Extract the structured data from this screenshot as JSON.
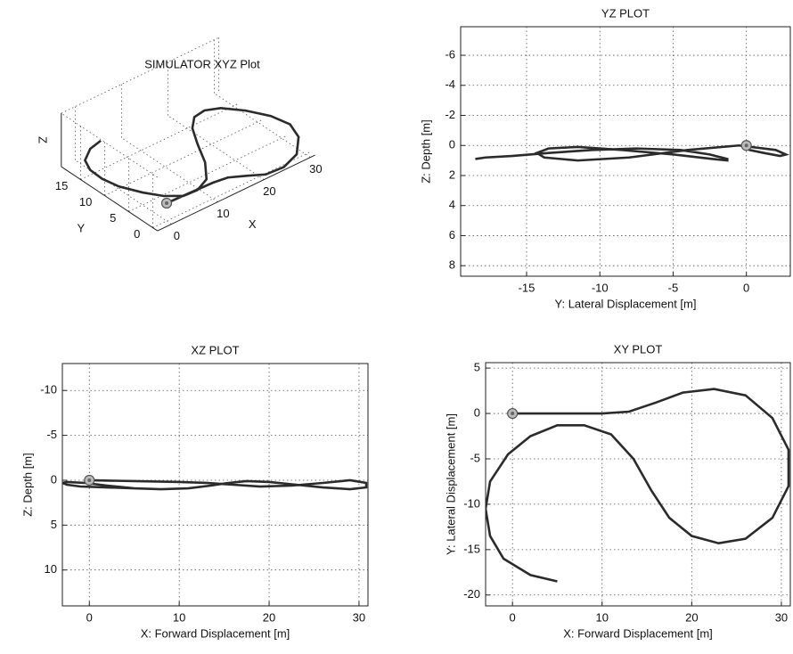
{
  "chart_data": [
    {
      "type": "line3d",
      "title": "SIMULATOR XYZ Plot",
      "xlabel": "X",
      "ylabel": "Y",
      "zlabel": "Z",
      "xlim": [
        -3,
        31
      ],
      "ylim": [
        -1,
        19
      ],
      "zlim": [
        -4,
        2
      ],
      "xticks": [
        0,
        10,
        20,
        30
      ],
      "yticks": [
        0,
        5,
        10,
        15
      ],
      "grid": true,
      "start_marker": true,
      "series": [
        {
          "color": "#2b2b2b",
          "x": [
            0,
            5,
            10,
            13,
            16,
            19,
            22.5,
            26,
            29,
            30.8,
            30.8,
            29,
            26,
            23,
            20,
            17.5,
            15.5,
            13.5,
            11,
            8,
            5,
            2,
            -0.5,
            -2.5,
            -3,
            -2.5,
            -1,
            2,
            5
          ],
          "y": [
            0,
            0,
            0,
            -0.2,
            -1.2,
            -2.3,
            -2.7,
            -2,
            0.5,
            4,
            8,
            11.5,
            13.8,
            14.3,
            13.5,
            11.5,
            8.5,
            5,
            2.3,
            1.3,
            1.3,
            2.5,
            4.5,
            7.5,
            10.5,
            13.5,
            16,
            17.8,
            18.5
          ],
          "z": [
            0,
            0.1,
            0.2,
            0.3,
            0.5,
            0.7,
            0.6,
            0.3,
            0,
            0.3,
            0.8,
            1,
            0.8,
            0.5,
            0.2,
            0.1,
            0.3,
            0.6,
            0.9,
            1,
            0.9,
            0.6,
            0.3,
            0.2,
            0.3,
            0.5,
            0.7,
            0.8,
            0.9
          ]
        }
      ]
    },
    {
      "type": "line",
      "title": "YZ PLOT",
      "xlabel": "Y: Lateral Displacement [m]",
      "ylabel": "Z: Depth [m]",
      "xlim": [
        -19.5,
        3
      ],
      "ylim": [
        -7.9,
        8.7
      ],
      "y_reversed": true,
      "xticks": [
        -15,
        -10,
        -5,
        0
      ],
      "yticks": [
        -6,
        -4,
        -2,
        0,
        2,
        4,
        6,
        8
      ],
      "grid": true,
      "start_marker": true,
      "series": [
        {
          "color": "#2b2b2b",
          "x": [
            0,
            0,
            0,
            0.2,
            1.2,
            2.3,
            2.7,
            2,
            -0.5,
            -4,
            -8,
            -11.5,
            -13.8,
            -14.3,
            -13.5,
            -11.5,
            -8.5,
            -5,
            -2.3,
            -1.3,
            -1.3,
            -2.5,
            -4.5,
            -7.5,
            -10.5,
            -13.5,
            -16,
            -17.8,
            -18.5
          ],
          "values": [
            0,
            0.1,
            0.2,
            0.3,
            0.5,
            0.7,
            0.6,
            0.3,
            0,
            0.3,
            0.8,
            1,
            0.8,
            0.5,
            0.2,
            0.1,
            0.3,
            0.6,
            0.9,
            1,
            0.9,
            0.6,
            0.3,
            0.2,
            0.3,
            0.5,
            0.7,
            0.8,
            0.9
          ]
        }
      ]
    },
    {
      "type": "line",
      "title": "XZ PLOT",
      "xlabel": "X: Forward Displacement [m]",
      "ylabel": "Z: Depth [m]",
      "xlim": [
        -3,
        31
      ],
      "ylim": [
        -13,
        14
      ],
      "y_reversed": true,
      "xticks": [
        0,
        10,
        20,
        30
      ],
      "yticks": [
        -10,
        -5,
        0,
        5,
        10
      ],
      "grid": true,
      "start_marker": true,
      "series": [
        {
          "color": "#2b2b2b",
          "x": [
            0,
            5,
            10,
            13,
            16,
            19,
            22.5,
            26,
            29,
            30.8,
            30.8,
            29,
            26,
            23,
            20,
            17.5,
            15.5,
            13.5,
            11,
            8,
            5,
            2,
            -0.5,
            -2.5,
            -3,
            -2.5,
            -1,
            2,
            5
          ],
          "values": [
            0,
            0.1,
            0.2,
            0.3,
            0.5,
            0.7,
            0.6,
            0.3,
            0,
            0.3,
            0.8,
            1,
            0.8,
            0.5,
            0.2,
            0.1,
            0.3,
            0.6,
            0.9,
            1,
            0.9,
            0.6,
            0.3,
            0.2,
            0.3,
            0.5,
            0.7,
            0.8,
            0.9
          ]
        }
      ]
    },
    {
      "type": "line",
      "title": "XY PLOT",
      "xlabel": "X: Forward Displacement [m]",
      "ylabel": "Y: Lateral Displacement [m]",
      "xlim": [
        -3,
        31
      ],
      "ylim": [
        -21.2,
        5.6
      ],
      "xticks": [
        0,
        10,
        20,
        30
      ],
      "yticks": [
        -20,
        -15,
        -10,
        -5,
        0,
        5
      ],
      "grid": true,
      "start_marker": true,
      "series": [
        {
          "color": "#2b2b2b",
          "x": [
            0,
            5,
            10,
            13,
            16,
            19,
            22.5,
            26,
            29,
            30.8,
            30.8,
            29,
            26,
            23,
            20,
            17.5,
            15.5,
            13.5,
            11,
            8,
            5,
            2,
            -0.5,
            -2.5,
            -3,
            -2.5,
            -1,
            2,
            5
          ],
          "values": [
            0,
            0,
            0,
            0.2,
            1.2,
            2.3,
            2.7,
            2,
            -0.5,
            -4,
            -8,
            -11.5,
            -13.8,
            -14.3,
            -13.5,
            -11.5,
            -8.5,
            -5,
            -2.3,
            -1.3,
            -1.3,
            -2.5,
            -4.5,
            -7.5,
            -10.5,
            -13.5,
            -16,
            -17.8,
            -18.5
          ]
        }
      ]
    }
  ]
}
